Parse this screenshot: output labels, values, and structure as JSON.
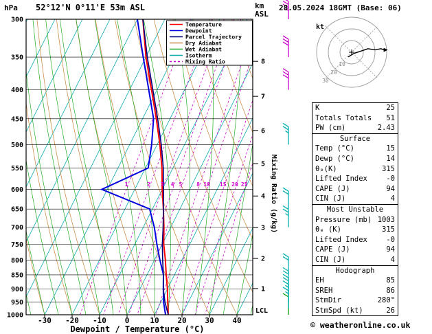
{
  "header": {
    "pressure_unit": "hPa",
    "station": "52°12'N 0°11'E 53m ASL",
    "datetime": "28.05.2024 18GMT (Base: 06)"
  },
  "axes": {
    "pressure_ticks": [
      300,
      350,
      400,
      450,
      500,
      550,
      600,
      650,
      700,
      750,
      800,
      850,
      900,
      950,
      1000
    ],
    "temp_ticks": [
      -30,
      -20,
      -10,
      0,
      10,
      20,
      30,
      40
    ],
    "xlabel": "Dewpoint / Temperature (°C)",
    "km_label_top": "km",
    "km_label_bottom": "ASL",
    "km_ticks": [
      8,
      7,
      6,
      5,
      4,
      3,
      2,
      1
    ],
    "lcl_label": "LCL",
    "mixing_ratio_axis_label": "Mixing Ratio (g/kg)",
    "mixing_ratio_values": [
      1,
      2,
      3,
      4,
      5,
      8,
      10,
      15,
      20,
      25
    ]
  },
  "legend": {
    "items": [
      {
        "label": "Temperature",
        "color": "#ff0000",
        "dash": ""
      },
      {
        "label": "Dewpoint",
        "color": "#0000e0",
        "dash": ""
      },
      {
        "label": "Parcel Trajectory",
        "color": "#000080",
        "dash": ""
      },
      {
        "label": "Dry Adiabat",
        "color": "#cc8f4d",
        "dash": ""
      },
      {
        "label": "Wet Adiabat",
        "color": "#22aa22",
        "dash": ""
      },
      {
        "label": "Isotherm",
        "color": "#00aaaa",
        "dash": ""
      },
      {
        "label": "Mixing Ratio",
        "color": "#cc00cc",
        "dash": "3,3"
      }
    ]
  },
  "chart_data": {
    "type": "line",
    "subtype": "skew-t-log-p-sounding",
    "title": "52°12'N 0°11'E 53m ASL  28.05.2024 18GMT (Base: 06)",
    "xlabel": "Dewpoint / Temperature (°C)",
    "ylabel": "hPa",
    "x_range_surface": [
      -30,
      40
    ],
    "y_scale": "log-pressure",
    "y_range": [
      1000,
      300
    ],
    "pressure_hPa": [
      1000,
      950,
      900,
      850,
      800,
      750,
      700,
      650,
      600,
      550,
      500,
      450,
      400,
      350,
      300
    ],
    "series": [
      {
        "name": "Temperature",
        "color": "#ff0000",
        "values_C": [
          15,
          12.5,
          10,
          7,
          4,
          0.5,
          -2.5,
          -6,
          -10,
          -14,
          -19,
          -25,
          -32,
          -40,
          -48
        ]
      },
      {
        "name": "Dewpoint",
        "color": "#0000e0",
        "values_C": [
          14,
          11,
          8.5,
          6,
          2,
          -2,
          -6,
          -11,
          -32,
          -19,
          -22,
          -26,
          -33,
          -41,
          -50
        ]
      },
      {
        "name": "Parcel Trajectory",
        "color": "#000080",
        "values_C": [
          15,
          11.5,
          8.5,
          6,
          3,
          0,
          -2.8,
          -6,
          -9.5,
          -13.5,
          -18.5,
          -24.5,
          -31.5,
          -39.5,
          -48
        ]
      }
    ],
    "wind_barbs": [
      {
        "p": 1000,
        "speed_kt": 10,
        "color": "#00a000"
      },
      {
        "p": 975,
        "speed_kt": 15,
        "color": "#00b0b0"
      },
      {
        "p": 950,
        "speed_kt": 15,
        "color": "#00b0b0"
      },
      {
        "p": 925,
        "speed_kt": 20,
        "color": "#00b0b0"
      },
      {
        "p": 900,
        "speed_kt": 20,
        "color": "#00b0b0"
      },
      {
        "p": 850,
        "speed_kt": 20,
        "color": "#00b0b0"
      },
      {
        "p": 700,
        "speed_kt": 25,
        "color": "#00b0b0"
      },
      {
        "p": 650,
        "speed_kt": 20,
        "color": "#00b0b0"
      },
      {
        "p": 500,
        "speed_kt": 25,
        "color": "#00b0b0"
      },
      {
        "p": 400,
        "speed_kt": 30,
        "color": "#cc00cc"
      },
      {
        "p": 350,
        "speed_kt": 30,
        "color": "#cc00cc"
      },
      {
        "p": 300,
        "speed_kt": 35,
        "color": "#cc00cc"
      }
    ],
    "hodograph": {
      "kt_label": "kt",
      "rings_kt": [
        10,
        20,
        30
      ],
      "trace_u_kt": [
        -3,
        2,
        8,
        14,
        20,
        25,
        28
      ],
      "trace_v_kt": [
        -4,
        -1,
        1,
        3,
        2,
        3,
        2
      ]
    }
  },
  "stats": {
    "top": [
      {
        "label": "K",
        "value": "25"
      },
      {
        "label": "Totals Totals",
        "value": "51"
      },
      {
        "label": "PW (cm)",
        "value": "2.43"
      }
    ],
    "sections": [
      {
        "header": "Surface",
        "rows": [
          {
            "label": "Temp (°C)",
            "value": "15"
          },
          {
            "label": "Dewp (°C)",
            "value": "14"
          },
          {
            "label": "θₑ(K)",
            "value": "315"
          },
          {
            "label": "Lifted Index",
            "value": "-0"
          },
          {
            "label": "CAPE (J)",
            "value": "94"
          },
          {
            "label": "CIN (J)",
            "value": "4"
          }
        ]
      },
      {
        "header": "Most Unstable",
        "rows": [
          {
            "label": "Pressure (mb)",
            "value": "1003"
          },
          {
            "label": "θₑ (K)",
            "value": "315"
          },
          {
            "label": "Lifted Index",
            "value": "-0"
          },
          {
            "label": "CAPE (J)",
            "value": "94"
          },
          {
            "label": "CIN (J)",
            "value": "4"
          }
        ]
      },
      {
        "header": "Hodograph",
        "rows": [
          {
            "label": "EH",
            "value": "85"
          },
          {
            "label": "SREH",
            "value": "86"
          },
          {
            "label": "StmDir",
            "value": "280°"
          },
          {
            "label": "StmSpd (kt)",
            "value": "26"
          }
        ]
      }
    ]
  },
  "footer": {
    "credit": "© weatheronline.co.uk"
  }
}
